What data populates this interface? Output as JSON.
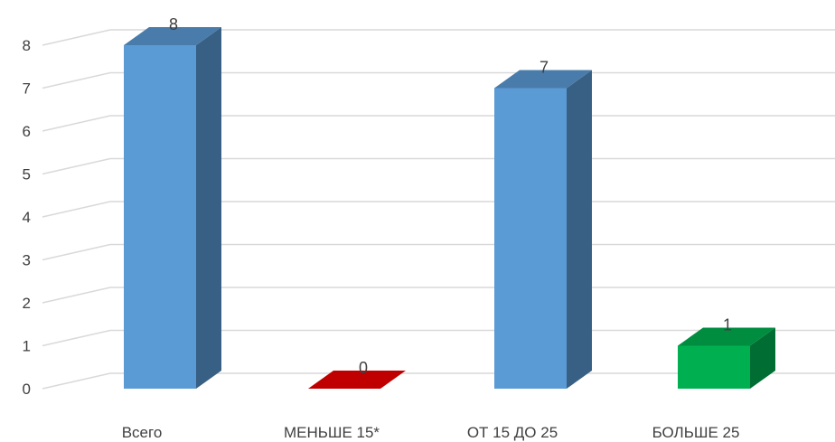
{
  "chart_data": {
    "type": "bar",
    "style": "3d-column",
    "title": "",
    "xlabel": "",
    "ylabel": "",
    "categories": [
      "Всего",
      "МЕНЬШЕ 15*",
      "ОТ 15 ДО 25",
      "БОЛЬШЕ 25"
    ],
    "values": [
      8,
      0,
      7,
      1
    ],
    "data_labels": [
      "8",
      "0",
      "7",
      "1"
    ],
    "colors": [
      "#5b9bd5",
      "#c00000",
      "#5b9bd5",
      "#00b050"
    ],
    "ylim": [
      0,
      8
    ],
    "yticks": [
      0,
      1,
      2,
      3,
      4,
      5,
      6,
      7,
      8
    ],
    "grid": true,
    "legend": "none"
  }
}
